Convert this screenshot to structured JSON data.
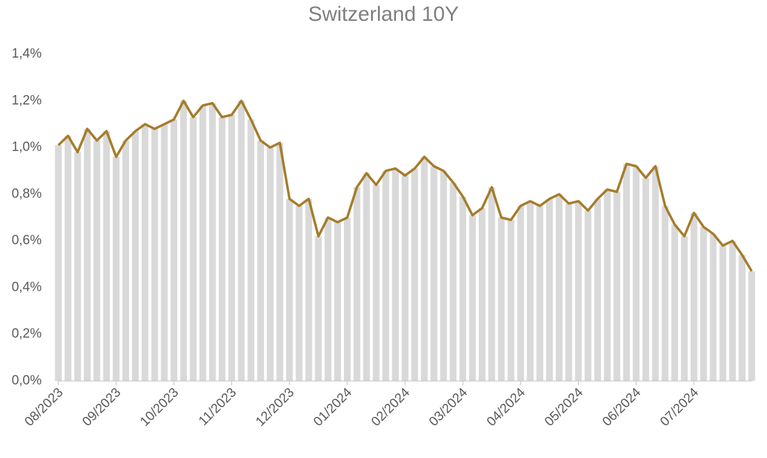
{
  "chart_data": {
    "type": "line",
    "title": "Switzerland 10Y",
    "categories": [
      "08/2023",
      null,
      null,
      null,
      null,
      null,
      "09/2023",
      null,
      null,
      null,
      null,
      null,
      "10/2023",
      null,
      null,
      null,
      null,
      null,
      "11/2023",
      null,
      null,
      null,
      null,
      null,
      "12/2023",
      null,
      null,
      null,
      null,
      null,
      "01/2024",
      null,
      null,
      null,
      null,
      null,
      "02/2024",
      null,
      null,
      null,
      null,
      null,
      "03/2024",
      null,
      null,
      null,
      null,
      null,
      "04/2024",
      null,
      null,
      null,
      null,
      null,
      "05/2024",
      null,
      null,
      null,
      null,
      null,
      "06/2024",
      null,
      null,
      null,
      null,
      null,
      "07/2024",
      null,
      null,
      null,
      null,
      null,
      null
    ],
    "values": [
      1.01,
      1.05,
      0.98,
      1.08,
      1.03,
      1.07,
      0.96,
      1.03,
      1.07,
      1.1,
      1.08,
      1.1,
      1.12,
      1.2,
      1.13,
      1.18,
      1.19,
      1.13,
      1.14,
      1.2,
      1.12,
      1.03,
      1.0,
      1.02,
      0.78,
      0.75,
      0.78,
      0.62,
      0.7,
      0.68,
      0.7,
      0.83,
      0.89,
      0.84,
      0.9,
      0.91,
      0.88,
      0.91,
      0.96,
      0.92,
      0.9,
      0.85,
      0.79,
      0.71,
      0.74,
      0.83,
      0.7,
      0.69,
      0.75,
      0.77,
      0.75,
      0.78,
      0.8,
      0.76,
      0.77,
      0.73,
      0.78,
      0.82,
      0.81,
      0.93,
      0.92,
      0.87,
      0.92,
      0.75,
      0.67,
      0.62,
      0.72,
      0.66,
      0.63,
      0.58,
      0.6,
      0.54,
      0.47
    ],
    "color": "#a57c2a",
    "fill_color": "#d9d9d9",
    "ylim": [
      0,
      1.4
    ],
    "yticks": [
      {
        "value": 0,
        "label": "0,0%"
      },
      {
        "value": 0.2,
        "label": "0,2%"
      },
      {
        "value": 0.4,
        "label": "0,4%"
      },
      {
        "value": 0.6,
        "label": "0,6%"
      },
      {
        "value": 0.8,
        "label": "0,8%"
      },
      {
        "value": 1.0,
        "label": "1,0%"
      },
      {
        "value": 1.2,
        "label": "1,2%"
      },
      {
        "value": 1.4,
        "label": "1,4%"
      }
    ]
  }
}
